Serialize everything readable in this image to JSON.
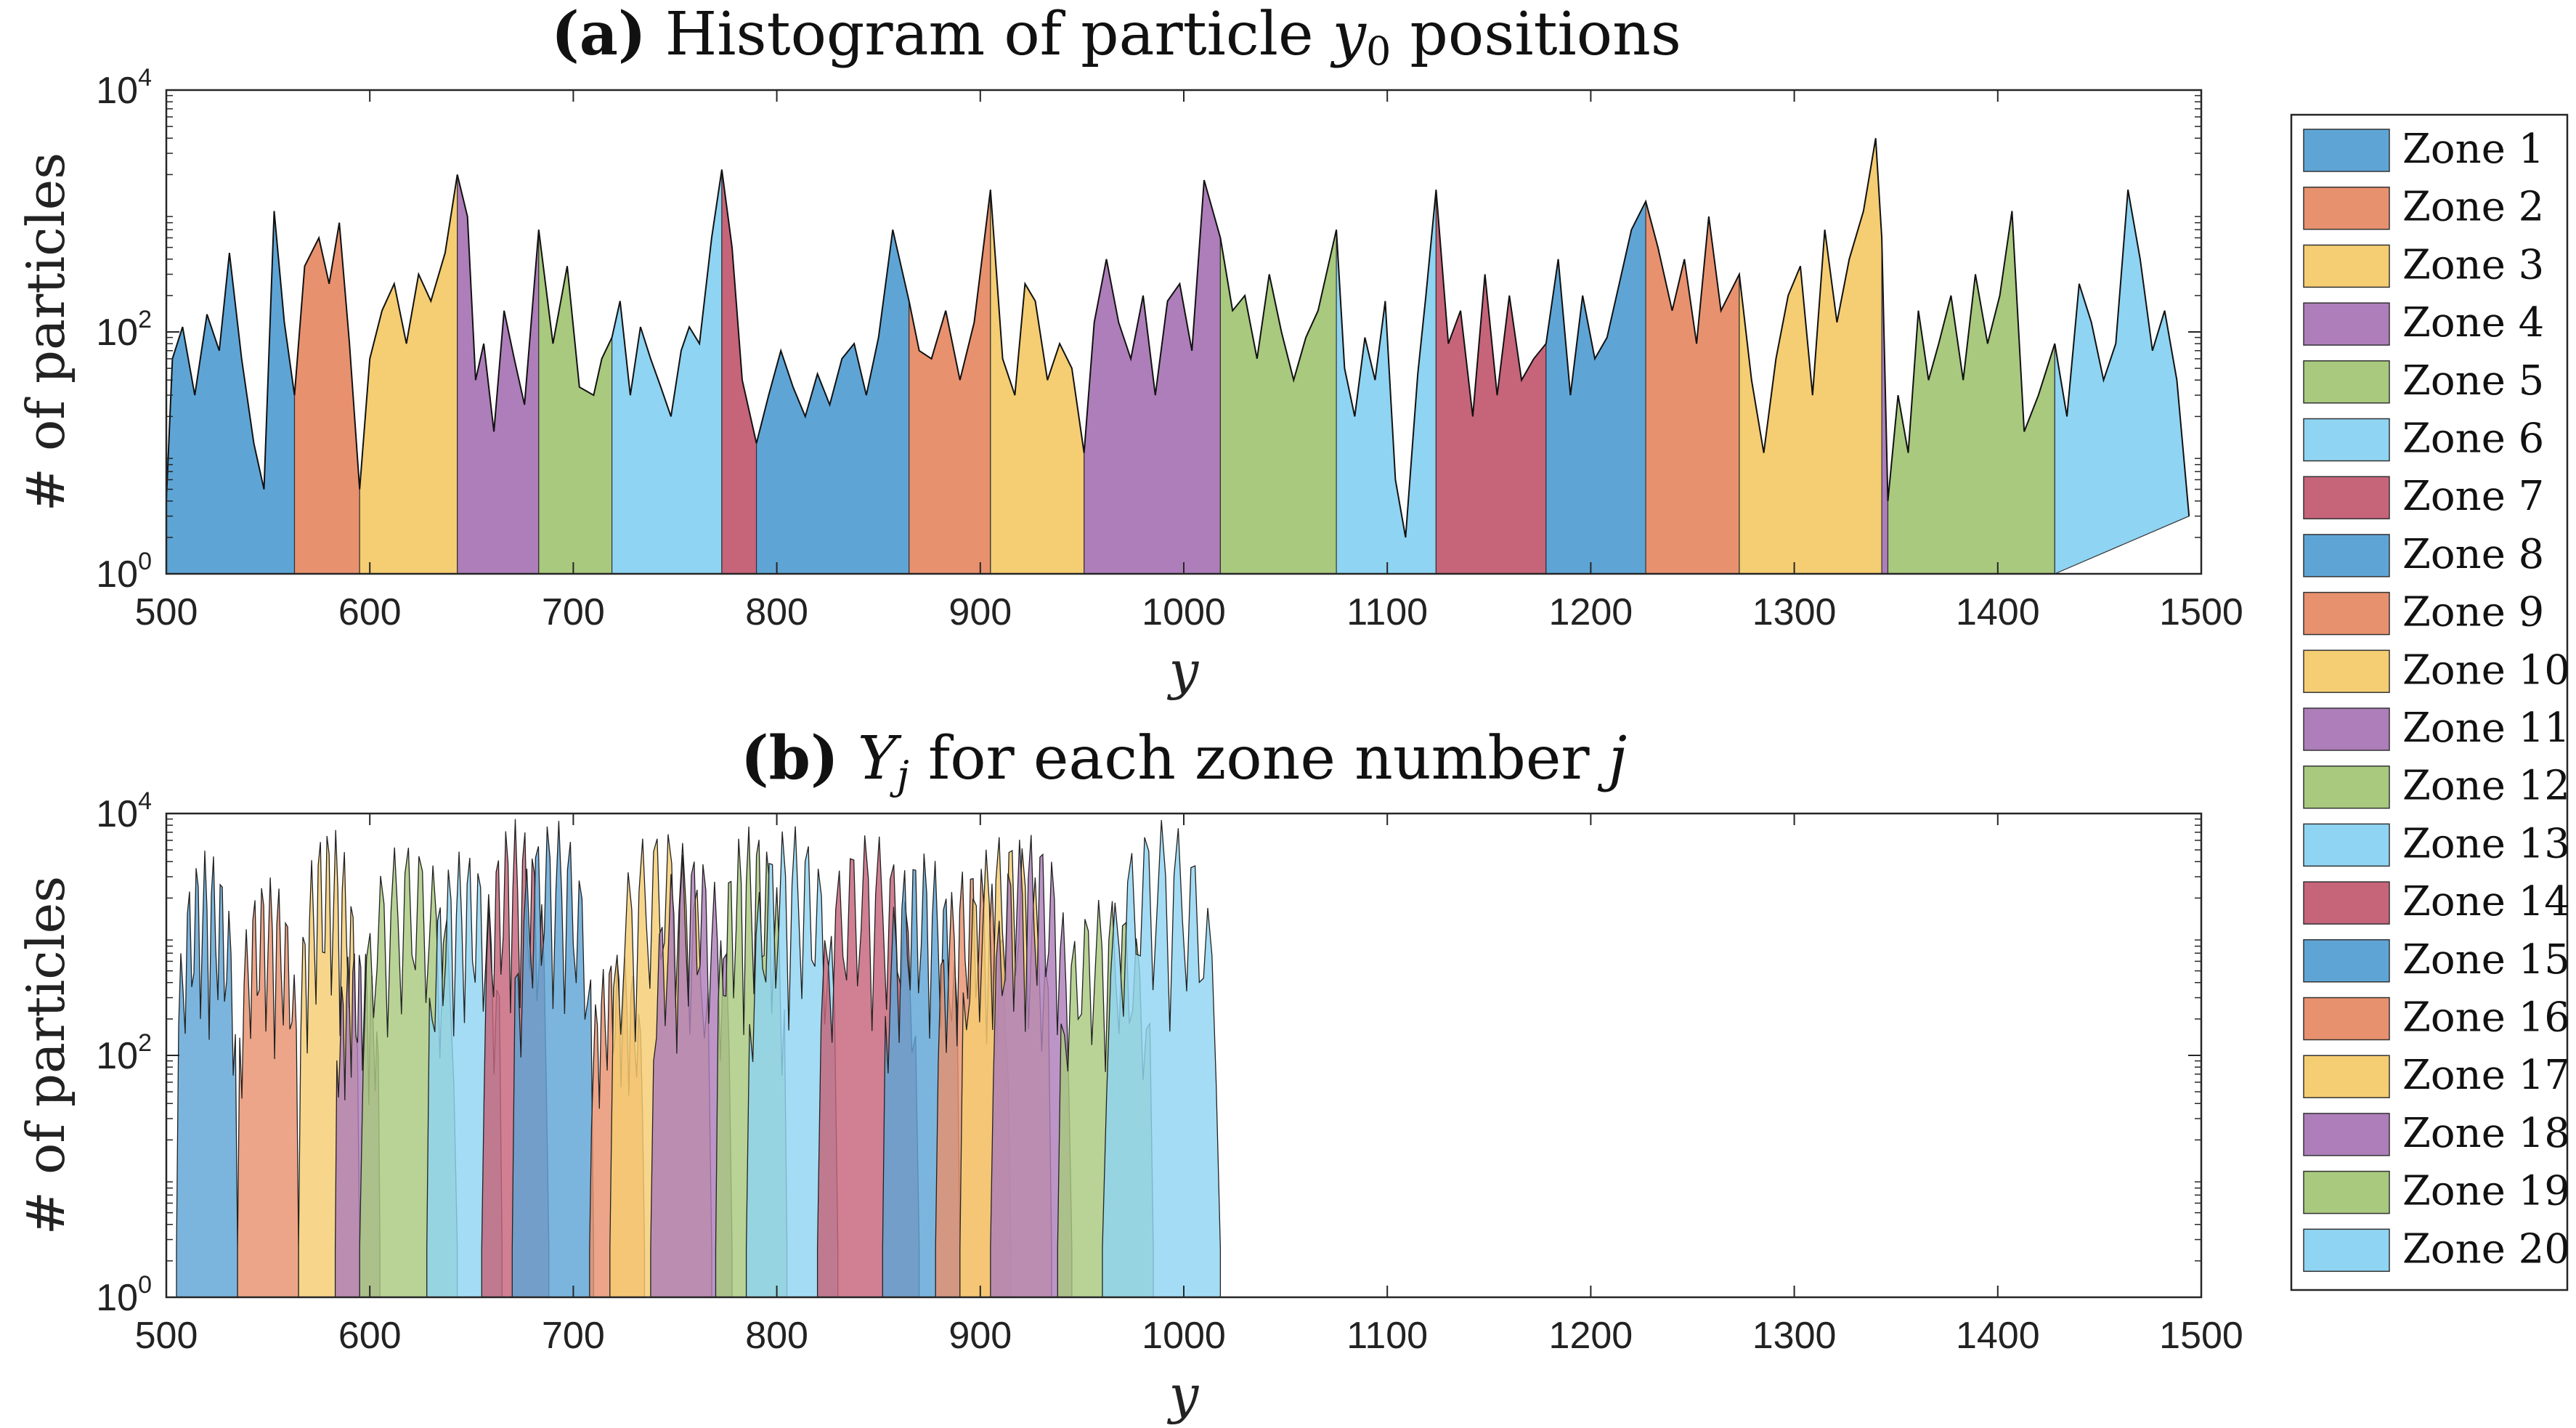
{
  "chart_data": [
    {
      "panel": "a",
      "type": "area",
      "title_prefix": "(a)",
      "title_text": "Histogram of particle",
      "title_var": "y",
      "title_sub": "0",
      "title_suffix": "positions",
      "xlabel": "y",
      "ylabel": "# of particles",
      "yscale": "log",
      "xlim": [
        500,
        1500
      ],
      "ylim": [
        1,
        10000
      ],
      "xticks": [
        "500",
        "600",
        "700",
        "800",
        "900",
        "1000",
        "1100",
        "1200",
        "1300",
        "1400",
        "1500"
      ],
      "ytick_base": "10",
      "ytick_exps": [
        "0",
        "2",
        "4"
      ],
      "grid": false,
      "zone_boundaries": [
        500,
        563,
        595,
        643,
        683,
        719,
        773,
        790,
        865,
        905,
        951,
        1018,
        1075,
        1124,
        1178,
        1227,
        1273,
        1343,
        1346,
        1428,
        1500
      ],
      "profile": {
        "y": [
          500,
          503,
          508,
          514,
          520,
          526,
          531,
          537,
          543,
          548,
          553,
          558,
          563,
          568,
          575,
          580,
          585,
          590,
          595,
          600,
          606,
          612,
          618,
          624,
          630,
          637,
          643,
          648,
          652,
          656,
          661,
          666,
          671,
          676,
          683,
          690,
          697,
          703,
          710,
          714,
          719,
          723,
          728,
          733,
          738,
          743,
          748,
          753,
          757,
          762,
          768,
          773,
          778,
          783,
          790,
          796,
          802,
          808,
          814,
          820,
          826,
          832,
          838,
          844,
          850,
          857,
          865,
          870,
          876,
          883,
          890,
          897,
          905,
          911,
          917,
          922,
          927,
          933,
          939,
          945,
          951,
          956,
          962,
          968,
          974,
          980,
          986,
          992,
          998,
          1004,
          1010,
          1018,
          1024,
          1030,
          1036,
          1042,
          1048,
          1054,
          1060,
          1066,
          1075,
          1079,
          1084,
          1089,
          1094,
          1099,
          1104,
          1109,
          1115,
          1119,
          1124,
          1130,
          1136,
          1142,
          1148,
          1154,
          1160,
          1166,
          1172,
          1178,
          1184,
          1190,
          1196,
          1202,
          1208,
          1214,
          1220,
          1227,
          1233,
          1240,
          1246,
          1252,
          1258,
          1264,
          1273,
          1279,
          1285,
          1291,
          1297,
          1303,
          1309,
          1315,
          1321,
          1327,
          1334,
          1340,
          1343,
          1346,
          1351,
          1356,
          1361,
          1366,
          1371,
          1377,
          1383,
          1389,
          1395,
          1401,
          1407,
          1413,
          1420,
          1428,
          1434,
          1440,
          1446,
          1452,
          1458,
          1464,
          1470,
          1476,
          1482,
          1488,
          1494,
          1500
        ],
        "v": [
          4,
          60,
          110,
          30,
          140,
          70,
          450,
          60,
          12,
          5,
          1000,
          120,
          30,
          350,
          600,
          250,
          800,
          80,
          5,
          60,
          150,
          250,
          80,
          300,
          180,
          450,
          2000,
          900,
          40,
          80,
          15,
          150,
          60,
          25,
          700,
          80,
          350,
          35,
          30,
          60,
          90,
          180,
          30,
          110,
          60,
          35,
          20,
          70,
          110,
          80,
          600,
          2200,
          500,
          40,
          12,
          30,
          70,
          35,
          20,
          45,
          25,
          60,
          80,
          30,
          90,
          700,
          180,
          70,
          60,
          150,
          40,
          120,
          1500,
          60,
          30,
          250,
          180,
          40,
          80,
          50,
          10,
          120,
          400,
          120,
          60,
          200,
          30,
          180,
          250,
          70,
          1800,
          600,
          150,
          200,
          60,
          300,
          100,
          40,
          90,
          150,
          700,
          50,
          20,
          90,
          40,
          180,
          6,
          2,
          45,
          200,
          1500,
          80,
          150,
          20,
          300,
          30,
          200,
          40,
          60,
          80,
          400,
          30,
          200,
          60,
          90,
          250,
          700,
          1200,
          500,
          150,
          400,
          80,
          900,
          150,
          300,
          40,
          10,
          60,
          200,
          350,
          30,
          700,
          120,
          400,
          1000,
          4000,
          600,
          4,
          30,
          10,
          150,
          40,
          80,
          200,
          40,
          300,
          80,
          200,
          1000,
          15,
          30,
          80,
          20,
          250,
          120,
          40,
          80,
          1500,
          400,
          70,
          150,
          40,
          3
        ]
      }
    },
    {
      "panel": "b",
      "type": "area",
      "title_prefix": "(b)",
      "title_var": "Y",
      "title_sub": "j",
      "title_text": "for each zone number",
      "title_var2": "j",
      "xlabel": "y",
      "ylabel": "# of particles",
      "yscale": "log",
      "xlim": [
        500,
        1500
      ],
      "ylim": [
        1,
        10000
      ],
      "xticks": [
        "500",
        "600",
        "700",
        "800",
        "900",
        "1000",
        "1100",
        "1200",
        "1300",
        "1400",
        "1500"
      ],
      "ytick_base": "10",
      "ytick_exps": [
        "0",
        "2",
        "4"
      ],
      "grid": false,
      "zones": [
        {
          "start": 505,
          "end": 535,
          "peak": 5000
        },
        {
          "start": 535,
          "end": 565,
          "peak": 3000
        },
        {
          "start": 565,
          "end": 595,
          "peak": 8000
        },
        {
          "start": 583,
          "end": 605,
          "peak": 800
        },
        {
          "start": 595,
          "end": 643,
          "peak": 6000
        },
        {
          "start": 628,
          "end": 665,
          "peak": 5000
        },
        {
          "start": 655,
          "end": 688,
          "peak": 9000
        },
        {
          "start": 670,
          "end": 710,
          "peak": 9000
        },
        {
          "start": 708,
          "end": 735,
          "peak": 700
        },
        {
          "start": 718,
          "end": 768,
          "peak": 8000
        },
        {
          "start": 738,
          "end": 778,
          "peak": 5000
        },
        {
          "start": 770,
          "end": 805,
          "peak": 8000
        },
        {
          "start": 785,
          "end": 830,
          "peak": 8000
        },
        {
          "start": 820,
          "end": 870,
          "peak": 7000
        },
        {
          "start": 852,
          "end": 890,
          "peak": 5000
        },
        {
          "start": 878,
          "end": 915,
          "peak": 4000
        },
        {
          "start": 890,
          "end": 935,
          "peak": 7000
        },
        {
          "start": 905,
          "end": 945,
          "peak": 7000
        },
        {
          "start": 938,
          "end": 985,
          "peak": 2000
        },
        {
          "start": 960,
          "end": 1018,
          "peak": 9000
        }
      ]
    }
  ],
  "legend": {
    "entries": [
      "Zone 1",
      "Zone 2",
      "Zone 3",
      "Zone 4",
      "Zone 5",
      "Zone 6",
      "Zone 7",
      "Zone 8",
      "Zone 9",
      "Zone 10",
      "Zone 11",
      "Zone 12",
      "Zone 13",
      "Zone 14",
      "Zone 15",
      "Zone 16",
      "Zone 17",
      "Zone 18",
      "Zone 19",
      "Zone 20"
    ],
    "colors": [
      "#5EA5D6",
      "#E8916E",
      "#F5CD72",
      "#AD7EB9",
      "#A8C97E",
      "#8FD4F2",
      "#C6647A",
      "#5EA5D6",
      "#E8916E",
      "#F5CD72",
      "#AD7EB9",
      "#A8C97E",
      "#8FD4F2",
      "#C6647A",
      "#5EA5D6",
      "#E8916E",
      "#F5CD72",
      "#AD7EB9",
      "#A8C97E",
      "#8FD4F2"
    ],
    "placement": "right"
  }
}
